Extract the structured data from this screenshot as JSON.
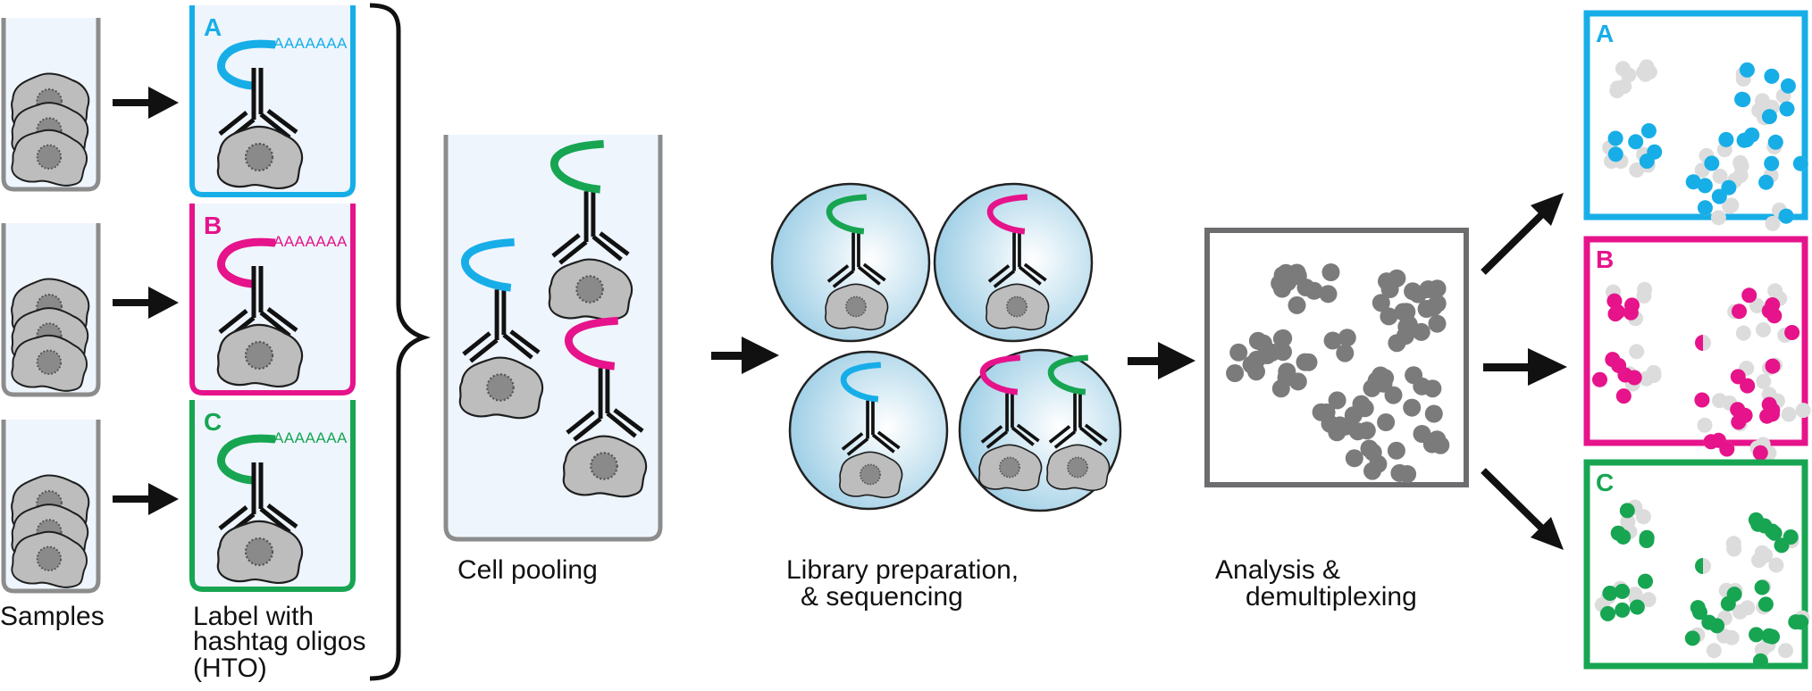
{
  "colors": {
    "a": "#17aee8",
    "b": "#e6138b",
    "c": "#17a552",
    "gray_cluster": "#7b7b7b",
    "light_cluster": "#dcdcdc",
    "tube_fill": "#eef5fd",
    "tube_stroke": "#8c8c8c"
  },
  "steps": {
    "samples": "Samples",
    "label_line1": "Label with",
    "label_line2": "hashtag oligos",
    "label_line3": "(HTO)",
    "pooling": "Cell pooling",
    "library_line1": "Library preparation,",
    "library_line2": "& sequencing",
    "analysis_line1": "Analysis &",
    "analysis_line2": "demultiplexing"
  },
  "hashtags": [
    {
      "letter": "A",
      "poly_a": "AAAAAAA",
      "color": "#17aee8"
    },
    {
      "letter": "B",
      "poly_a": "AAAAAAA",
      "color": "#e6138b"
    },
    {
      "letter": "C",
      "poly_a": "AAAAAAA",
      "color": "#17a552"
    }
  ],
  "results": [
    {
      "letter": "A",
      "color": "#17aee8"
    },
    {
      "letter": "B",
      "color": "#e6138b"
    },
    {
      "letter": "C",
      "color": "#17a552"
    }
  ],
  "icons": {
    "cell": "cell-with-nucleus-icon",
    "antibody": "antibody-icon",
    "oligo": "hashtag-oligo-icon",
    "droplet": "droplet-icon",
    "arrow": "arrow-right-icon"
  }
}
